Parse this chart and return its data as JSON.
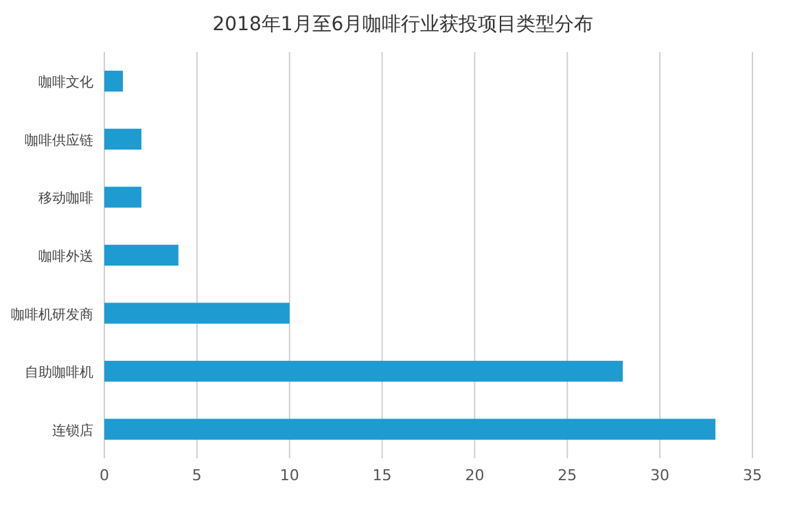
{
  "chart_data": {
    "type": "bar",
    "orientation": "horizontal",
    "title": "2018年1月至6月咖啡行业获投项目类型分布",
    "categories": [
      "咖啡文化",
      "咖啡供应链",
      "移动咖啡",
      "咖啡外送",
      "咖啡机研发商",
      "自助咖啡机",
      "连锁店"
    ],
    "series": [
      {
        "color": "#1e9bd0",
        "values": [
          1,
          2,
          2,
          4,
          10,
          28,
          33
        ]
      }
    ],
    "xlim": [
      0,
      35
    ],
    "xticks": [
      0,
      5,
      10,
      15,
      20,
      25,
      30,
      35
    ],
    "grid": "x"
  }
}
